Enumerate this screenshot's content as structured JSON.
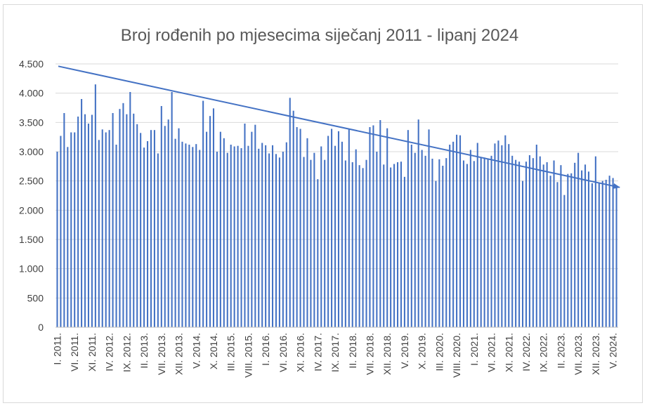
{
  "chart_data": {
    "type": "bar",
    "title": "Broj rođenih po mjesecima siječanj 2011 - lipanj 2024",
    "xlabel": "",
    "ylabel": "",
    "ylim": [
      0,
      4500
    ],
    "y_ticks": [
      0,
      500,
      1000,
      1500,
      2000,
      2500,
      3000,
      3500,
      4000,
      4500
    ],
    "y_tick_labels": [
      "0",
      "500",
      "1.000",
      "1.500",
      "2.000",
      "2.500",
      "3.000",
      "3.500",
      "4.000",
      "4.500"
    ],
    "grid": true,
    "legend": "none",
    "bar_color": "#4472c4",
    "trend_color": "#4472c4",
    "x_tick_labels": [
      {
        "index": 0,
        "label": "I. 2011."
      },
      {
        "index": 5,
        "label": "VI. 2011."
      },
      {
        "index": 10,
        "label": "XI. 2011."
      },
      {
        "index": 15,
        "label": "IV. 2012."
      },
      {
        "index": 20,
        "label": "IX. 2012."
      },
      {
        "index": 25,
        "label": "II. 2013."
      },
      {
        "index": 30,
        "label": "VII. 2013."
      },
      {
        "index": 35,
        "label": "XII. 2013."
      },
      {
        "index": 40,
        "label": "V. 2014."
      },
      {
        "index": 45,
        "label": "X. 2014."
      },
      {
        "index": 50,
        "label": "III. 2015."
      },
      {
        "index": 55,
        "label": "VIII. 2015."
      },
      {
        "index": 60,
        "label": "I. 2016."
      },
      {
        "index": 65,
        "label": "VI. 2016."
      },
      {
        "index": 70,
        "label": "XI. 2016."
      },
      {
        "index": 75,
        "label": "IV. 2017."
      },
      {
        "index": 80,
        "label": "IX. 2017."
      },
      {
        "index": 85,
        "label": "II. 2018."
      },
      {
        "index": 90,
        "label": "VII. 2018."
      },
      {
        "index": 95,
        "label": "XII. 2018."
      },
      {
        "index": 100,
        "label": "V. 2019."
      },
      {
        "index": 105,
        "label": "X. 2019."
      },
      {
        "index": 110,
        "label": "III. 2020."
      },
      {
        "index": 115,
        "label": "VIII. 2020."
      },
      {
        "index": 120,
        "label": "I. 2021."
      },
      {
        "index": 125,
        "label": "VI. 2021."
      },
      {
        "index": 130,
        "label": "XI. 2021."
      },
      {
        "index": 135,
        "label": "IV. 2022."
      },
      {
        "index": 140,
        "label": "IX. 2022."
      },
      {
        "index": 145,
        "label": "II. 2023."
      },
      {
        "index": 150,
        "label": "VII. 2023."
      },
      {
        "index": 155,
        "label": "XII. 2023."
      },
      {
        "index": 160,
        "label": "V. 2024."
      }
    ],
    "series": [
      {
        "values": [
          3000,
          3270,
          3660,
          3080,
          3330,
          3330,
          3600,
          3900,
          3640,
          3480,
          3630,
          4150,
          3200,
          3380,
          3330,
          3370,
          3660,
          3120,
          3730,
          3830,
          3640,
          4020,
          3650,
          3470,
          3320,
          3070,
          3180,
          3370,
          3370,
          2970,
          3780,
          3440,
          3550,
          4020,
          3220,
          3400,
          3170,
          3140,
          3120,
          3080,
          3130,
          3030,
          3870,
          3340,
          3610,
          3740,
          3000,
          3340,
          3230,
          2980,
          3120,
          3090,
          3100,
          3060,
          3480,
          3100,
          3340,
          3460,
          3050,
          3150,
          3110,
          2970,
          3110,
          2960,
          2900,
          3000,
          3160,
          3920,
          3700,
          3420,
          3390,
          2910,
          3230,
          2860,
          2980,
          2530,
          3090,
          2860,
          3270,
          3390,
          3100,
          3350,
          3170,
          2850,
          3390,
          2820,
          3040,
          2770,
          2720,
          2860,
          3420,
          3450,
          3000,
          3540,
          2780,
          3400,
          2730,
          2790,
          2820,
          2830,
          2570,
          3370,
          3120,
          2980,
          3550,
          3030,
          2930,
          3380,
          2880,
          2500,
          2870,
          2760,
          2890,
          3120,
          3170,
          3290,
          3280,
          2850,
          2790,
          3030,
          2840,
          3150,
          2900,
          2900,
          2880,
          2930,
          3140,
          3190,
          3110,
          3280,
          3130,
          2930,
          2860,
          2830,
          2500,
          2830,
          2940,
          2890,
          3120,
          2920,
          2780,
          2820,
          2590,
          2850,
          2480,
          2770,
          2260,
          2620,
          2630,
          2810,
          2980,
          2680,
          2780,
          2660,
          2460,
          2920,
          2470,
          2500,
          2520,
          2590,
          2550,
          2390
        ]
      }
    ],
    "trend": {
      "type": "linear",
      "start_value": 4460,
      "end_value": 2390
    }
  }
}
